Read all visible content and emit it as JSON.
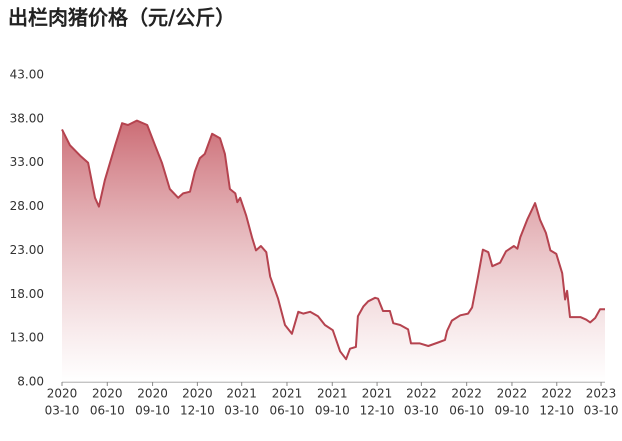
{
  "chart_data": {
    "type": "area",
    "title": "出栏肉猪价格（元/公斤）",
    "x": [
      "2020-03-10",
      "2020-03-26",
      "2020-04-16",
      "2020-05-02",
      "2020-05-16",
      "2020-05-24",
      "2020-06-05",
      "2020-06-26",
      "2020-07-10",
      "2020-07-22",
      "2020-08-09",
      "2020-08-30",
      "2020-09-15",
      "2020-09-29",
      "2020-10-15",
      "2020-11-01",
      "2020-11-11",
      "2020-11-25",
      "2020-12-05",
      "2020-12-15",
      "2020-12-25",
      "2021-01-09",
      "2021-01-25",
      "2021-02-04",
      "2021-02-14",
      "2021-02-25",
      "2021-03-01",
      "2021-03-07",
      "2021-03-19",
      "2021-03-31",
      "2021-04-08",
      "2021-04-18",
      "2021-04-29",
      "2021-05-07",
      "2021-05-23",
      "2021-06-06",
      "2021-06-20",
      "2021-07-03",
      "2021-07-13",
      "2021-07-27",
      "2021-08-12",
      "2021-08-26",
      "2021-09-11",
      "2021-09-26",
      "2021-10-08",
      "2021-10-16",
      "2021-10-28",
      "2021-11-01",
      "2021-11-12",
      "2021-11-22",
      "2021-12-06",
      "2021-12-12",
      "2021-12-22",
      "2022-01-05",
      "2022-01-12",
      "2022-01-26",
      "2022-02-11",
      "2022-02-17",
      "2022-03-07",
      "2022-03-24",
      "2022-04-13",
      "2022-04-27",
      "2022-05-01",
      "2022-05-11",
      "2022-05-28",
      "2022-06-13",
      "2022-06-21",
      "2022-07-03",
      "2022-07-13",
      "2022-07-24",
      "2022-08-01",
      "2022-08-17",
      "2022-08-29",
      "2022-09-14",
      "2022-09-21",
      "2022-09-27",
      "2022-10-11",
      "2022-10-27",
      "2022-11-06",
      "2022-11-18",
      "2022-11-27",
      "2022-12-09",
      "2022-12-21",
      "2022-12-27",
      "2022-12-31",
      "2023-01-06",
      "2023-01-27",
      "2023-02-08",
      "2023-02-16",
      "2023-02-26",
      "2023-03-08",
      "2023-03-18"
    ],
    "values": [
      36.8,
      35,
      33.8,
      33,
      29,
      28,
      31,
      35,
      37.5,
      37.3,
      37.8,
      37.3,
      35,
      33,
      30,
      29,
      29.5,
      29.7,
      32,
      33.5,
      34,
      36.3,
      35.8,
      34,
      30,
      29.5,
      28.5,
      29,
      27,
      24.5,
      23,
      23.5,
      22.8,
      20,
      17.5,
      14.5,
      13.5,
      16,
      15.8,
      16,
      15.5,
      14.5,
      13.9,
      11.5,
      10.6,
      11.8,
      12,
      15.5,
      16.6,
      17.2,
      17.6,
      17.5,
      16.1,
      16.1,
      14.7,
      14.5,
      14,
      12.4,
      12.4,
      12.1,
      12.5,
      12.8,
      13.8,
      15,
      15.6,
      15.8,
      16.5,
      20,
      23.1,
      22.8,
      21.2,
      21.6,
      22.9,
      23.5,
      23.2,
      24.5,
      26.5,
      28.4,
      26.5,
      25,
      23,
      22.6,
      20.4,
      17.4,
      18.4,
      15.4,
      15.4,
      15.1,
      14.8,
      15.3,
      16.3,
      16.3
    ],
    "color": "#b5434f",
    "xlim": [
      "2020-03-10",
      "2023-03-18"
    ],
    "xticks": [
      {
        "value": "2020-03-10",
        "label": [
          "2020",
          "03-10"
        ]
      },
      {
        "value": "2020-06-10",
        "label": [
          "2020",
          "06-10"
        ]
      },
      {
        "value": "2020-09-10",
        "label": [
          "2020",
          "09-10"
        ]
      },
      {
        "value": "2020-12-10",
        "label": [
          "2020",
          "12-10"
        ]
      },
      {
        "value": "2021-03-10",
        "label": [
          "2021",
          "03-10"
        ]
      },
      {
        "value": "2021-06-10",
        "label": [
          "2021",
          "06-10"
        ]
      },
      {
        "value": "2021-09-10",
        "label": [
          "2021",
          "09-10"
        ]
      },
      {
        "value": "2021-12-10",
        "label": [
          "2021",
          "12-10"
        ]
      },
      {
        "value": "2022-03-10",
        "label": [
          "2022",
          "03-10"
        ]
      },
      {
        "value": "2022-06-10",
        "label": [
          "2022",
          "06-10"
        ]
      },
      {
        "value": "2022-09-10",
        "label": [
          "2022",
          "09-10"
        ]
      },
      {
        "value": "2022-12-10",
        "label": [
          "2022",
          "12-10"
        ]
      },
      {
        "value": "2023-03-10",
        "label": [
          "2023",
          "03-10"
        ]
      }
    ],
    "ylim": [
      8,
      43
    ],
    "yticks": [
      {
        "value": 8,
        "label": "8.00"
      },
      {
        "value": 13,
        "label": "13.00"
      },
      {
        "value": 18,
        "label": "18.00"
      },
      {
        "value": 23,
        "label": "23.00"
      },
      {
        "value": 28,
        "label": "28.00"
      },
      {
        "value": 33,
        "label": "33.00"
      },
      {
        "value": 38,
        "label": "38.00"
      },
      {
        "value": 43,
        "label": "43.00"
      }
    ]
  }
}
